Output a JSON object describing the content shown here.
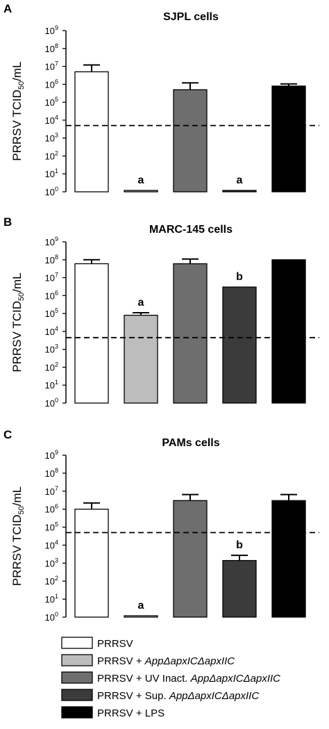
{
  "legend": [
    {
      "parts": [
        {
          "t": "PRRSV",
          "i": false
        }
      ],
      "color": "#ffffff"
    },
    {
      "parts": [
        {
          "t": "PRRSV + ",
          "i": false
        },
        {
          "t": "AppΔapxICΔapxIIC",
          "i": true
        }
      ],
      "color": "#bdbdbd"
    },
    {
      "parts": [
        {
          "t": "PRRSV + UV Inact. ",
          "i": false
        },
        {
          "t": "AppΔapxICΔapxIIC",
          "i": true
        }
      ],
      "color": "#6e6e6e"
    },
    {
      "parts": [
        {
          "t": "PRRSV + Sup. ",
          "i": false
        },
        {
          "t": "AppΔapxICΔapxIIC",
          "i": true
        }
      ],
      "color": "#3b3b3b"
    },
    {
      "parts": [
        {
          "t": "PRRSV + LPS",
          "i": false
        }
      ],
      "color": "#000000"
    }
  ],
  "chart_data": [
    {
      "type": "bar",
      "panel_letter": "A",
      "title": "SJPL cells",
      "ylabel": "PRRSV TCID",
      "ylabel_sub": "50",
      "ylabel_suffix": "/mL",
      "yscale": "log",
      "ylim": [
        1,
        1000000000
      ],
      "ytick_base": "10",
      "ytick_exponents": [
        "0",
        "1",
        "2",
        "3",
        "4",
        "5",
        "6",
        "7",
        "8",
        "9"
      ],
      "values": [
        5000000,
        1,
        500000,
        1,
        800000
      ],
      "error_upper": [
        12000000,
        null,
        1200000,
        null,
        1050000
      ],
      "labels": [
        "",
        "a",
        "",
        "a",
        ""
      ],
      "threshold": 5000
    },
    {
      "type": "bar",
      "panel_letter": "B",
      "title": "MARC-145 cells",
      "ylabel": "PRRSV TCID",
      "ylabel_sub": "50",
      "ylabel_suffix": "/mL",
      "yscale": "log",
      "ylim": [
        1,
        1000000000
      ],
      "ytick_base": "10",
      "ytick_exponents": [
        "0",
        "1",
        "2",
        "3",
        "4",
        "5",
        "6",
        "7",
        "8",
        "9"
      ],
      "values": [
        60000000,
        80000,
        60000000,
        3000000,
        100000000
      ],
      "error_upper": [
        100000000,
        110000,
        110000000,
        null,
        null
      ],
      "labels": [
        "",
        "a",
        "",
        "b",
        ""
      ],
      "threshold": 4500
    },
    {
      "type": "bar",
      "panel_letter": "C",
      "title": "PAMs cells",
      "ylabel": "PRRSV TCID",
      "ylabel_sub": "50",
      "ylabel_suffix": "/mL",
      "yscale": "log",
      "ylim": [
        1,
        1000000000
      ],
      "ytick_base": "10",
      "ytick_exponents": [
        "0",
        "1",
        "2",
        "3",
        "4",
        "5",
        "6",
        "7",
        "8",
        "9"
      ],
      "values": [
        1000000,
        1,
        3000000,
        1400,
        3000000
      ],
      "error_upper": [
        2200000,
        null,
        6500000,
        2700,
        6500000
      ],
      "labels": [
        "",
        "a",
        "",
        "b",
        ""
      ],
      "threshold": 50000
    }
  ]
}
